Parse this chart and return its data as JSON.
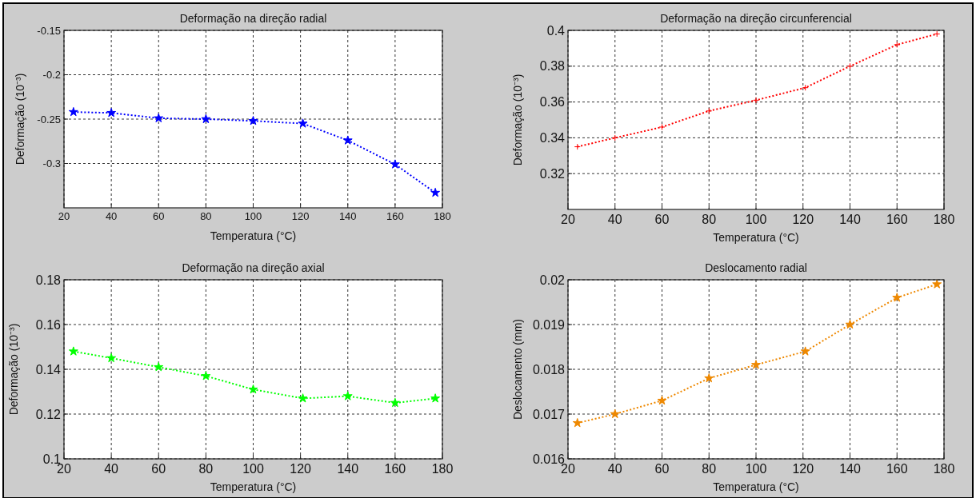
{
  "chart_data": [
    {
      "type": "line",
      "title": "Deformação na direção radial",
      "xlabel": "Temperatura (°C)",
      "ylabel": "Deformação (10⁻³)",
      "x": [
        24,
        40,
        60,
        80,
        100,
        121,
        140,
        160,
        177
      ],
      "series": [
        {
          "color": "#0000ff",
          "values": [
            -0.242,
            -0.243,
            -0.249,
            -0.25,
            -0.252,
            -0.255,
            -0.274,
            -0.301,
            -0.333
          ]
        }
      ],
      "xlim": [
        20,
        180
      ],
      "xticks": [
        20,
        40,
        60,
        80,
        100,
        120,
        140,
        160,
        180
      ],
      "ylim": [
        -0.35,
        -0.15
      ],
      "yticks": [
        -0.3,
        -0.25,
        -0.2,
        -0.15
      ],
      "grid": true,
      "marker": "star",
      "line_style": "dotted"
    },
    {
      "type": "line",
      "title": "Deformação na direção circunferencial",
      "xlabel": "Temperatura (°C)",
      "ylabel": "Deformação (10⁻³)",
      "x": [
        24,
        40,
        60,
        80,
        100,
        121,
        140,
        160,
        177
      ],
      "series": [
        {
          "color": "#ff0000",
          "values": [
            0.335,
            0.34,
            0.346,
            0.355,
            0.361,
            0.368,
            0.38,
            0.392,
            0.398
          ]
        }
      ],
      "xlim": [
        20,
        180
      ],
      "xticks": [
        20,
        40,
        60,
        80,
        100,
        120,
        140,
        160,
        180
      ],
      "ylim": [
        0.3,
        0.4
      ],
      "yticks": [
        0.32,
        0.34,
        0.36,
        0.38,
        0.4
      ],
      "grid": true,
      "marker": "cross",
      "line_style": "dotted"
    },
    {
      "type": "line",
      "title": "Deformação na direção axial",
      "xlabel": "Temperatura (°C)",
      "ylabel": "Deformação (10⁻³)",
      "x": [
        24,
        40,
        60,
        80,
        100,
        121,
        140,
        160,
        177
      ],
      "series": [
        {
          "color": "#00ff00",
          "values": [
            0.148,
            0.145,
            0.141,
            0.137,
            0.131,
            0.127,
            0.128,
            0.125,
            0.127
          ]
        }
      ],
      "xlim": [
        20,
        180
      ],
      "xticks": [
        20,
        40,
        60,
        80,
        100,
        120,
        140,
        160,
        180
      ],
      "ylim": [
        0.1,
        0.18
      ],
      "yticks": [
        0.1,
        0.12,
        0.14,
        0.16,
        0.18
      ],
      "grid": true,
      "marker": "star",
      "line_style": "dotted"
    },
    {
      "type": "line",
      "title": "Deslocamento radial",
      "xlabel": "Temperatura (°C)",
      "ylabel": "Deslocamento (mm)",
      "x": [
        24,
        40,
        60,
        80,
        100,
        121,
        140,
        160,
        177
      ],
      "series": [
        {
          "color": "#ee8800",
          "values": [
            0.0168,
            0.017,
            0.0173,
            0.0178,
            0.0181,
            0.0184,
            0.019,
            0.0196,
            0.0199
          ]
        }
      ],
      "xlim": [
        20,
        180
      ],
      "xticks": [
        20,
        40,
        60,
        80,
        100,
        120,
        140,
        160,
        180
      ],
      "ylim": [
        0.016,
        0.02
      ],
      "yticks": [
        0.016,
        0.017,
        0.018,
        0.019,
        0.02
      ],
      "grid": true,
      "marker": "star",
      "line_style": "dotted"
    }
  ]
}
